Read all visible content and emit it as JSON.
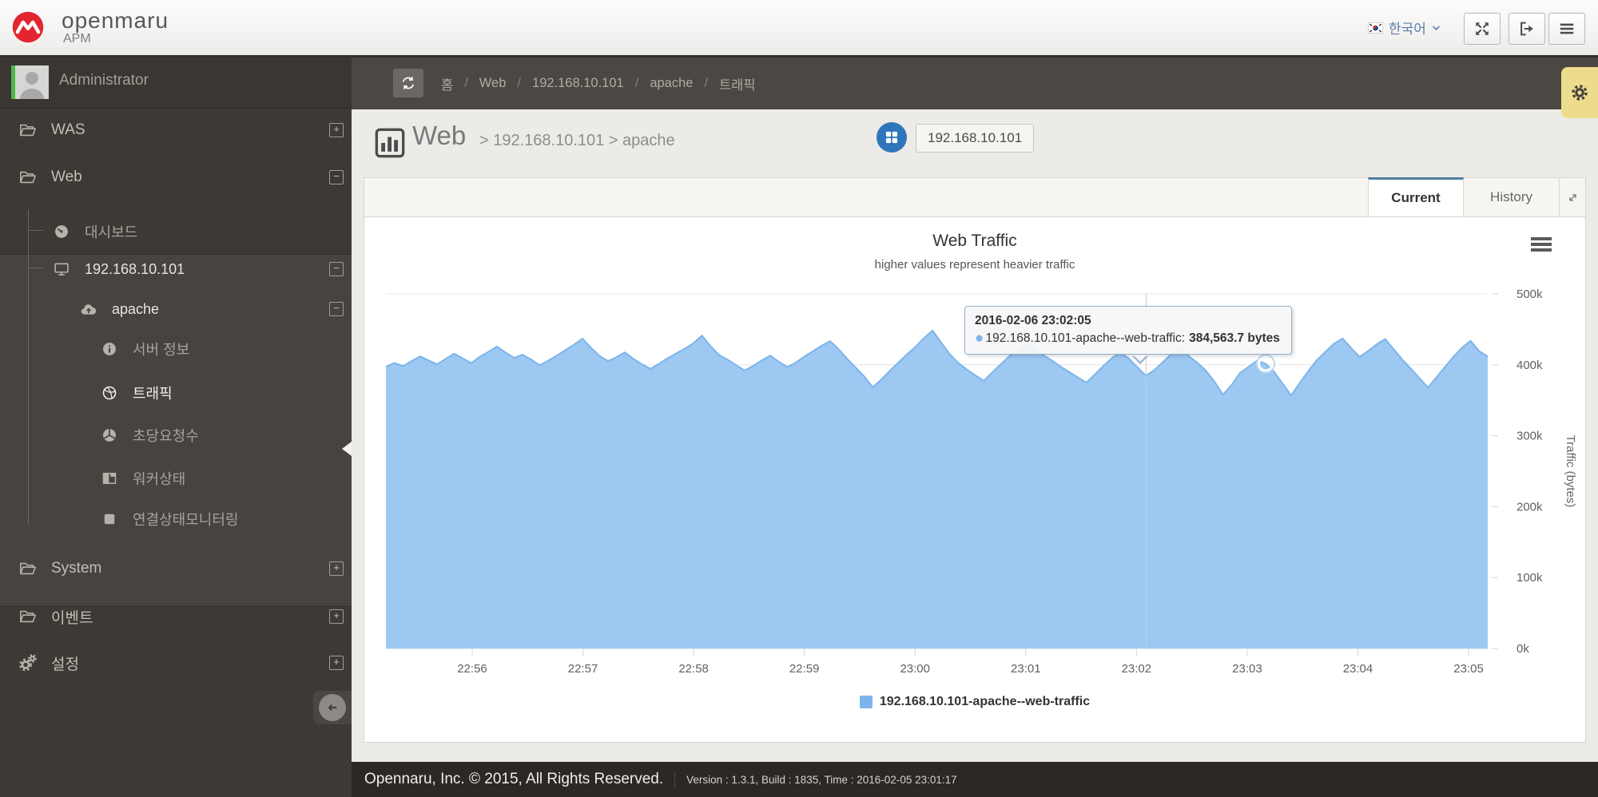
{
  "header": {
    "brand": {
      "name": "openmaru",
      "sub": "APM"
    },
    "language": {
      "label": "한국어"
    }
  },
  "sidebar": {
    "user": "Administrator",
    "was": {
      "label": "WAS",
      "expander": "+"
    },
    "web": {
      "label": "Web",
      "expander": "−"
    },
    "dashboard": {
      "label": "대시보드"
    },
    "host": {
      "label": "192.168.10.101",
      "expander": "−"
    },
    "apache": {
      "label": "apache",
      "expander": "−"
    },
    "server_info": {
      "label": "서버 정보"
    },
    "traffic": {
      "label": "트래픽"
    },
    "rps": {
      "label": "초당요청수"
    },
    "worker": {
      "label": "워커상태"
    },
    "conn": {
      "label": "연결상태모니터링"
    },
    "system": {
      "label": "System",
      "expander": "+"
    },
    "event": {
      "label": "이벤트",
      "expander": "+"
    },
    "settings": {
      "label": "설정",
      "expander": "+"
    }
  },
  "breadcrumb": {
    "sep": "/",
    "home": "홈",
    "level1": "Web",
    "level2": "192.168.10.101",
    "level3": "apache",
    "level4": "트래픽"
  },
  "page": {
    "title": "Web",
    "path": "> 192.168.10.101 > apache",
    "chip": "192.168.10.101"
  },
  "tabs": {
    "current_label": "Current",
    "history_label": "History"
  },
  "chart_data": {
    "type": "area",
    "title": "Web Traffic",
    "subtitle": "higher values represent heavier traffic",
    "xlabel": "",
    "ylabel": "Traffic (bytes)",
    "ylim_bytes": [
      0,
      500000
    ],
    "grid": true,
    "legend_position": "bottom",
    "ytick_labels": [
      "0k",
      "100k",
      "200k",
      "300k",
      "400k",
      "500k"
    ],
    "xtick_labels": [
      "22:56",
      "22:57",
      "22:58",
      "22:59",
      "23:00",
      "23:01",
      "23:02",
      "23:03",
      "23:04",
      "23:05"
    ],
    "series": [
      {
        "name": "192.168.10.101-apache--web-traffic",
        "color": "#7cb5ec",
        "unit": "bytes",
        "values_kbytes": [
          397.2,
          402.5,
          398.1,
          405.3,
          411.8,
          406.2,
          400.7,
          408.4,
          415.6,
          409.1,
          402.3,
          411.5,
          418.2,
          425.7,
          417.3,
          409.8,
          414.2,
          407.6,
          399.4,
          405.8,
          413.1,
          420.6,
          428.3,
          436.9,
          424.1,
          412.7,
          405.3,
          410.9,
          417.4,
          408.2,
          400.6,
          394.3,
          401.8,
          409.5,
          416.1,
          422.8,
          430.4,
          441.2,
          426.5,
          413.8,
          407.2,
          399.6,
          392.1,
          398.7,
          406.3,
          412.9,
          404.4,
          396.8,
          403.2,
          411.7,
          419.3,
          426.8,
          433.4,
          421.9,
          408.5,
          396.2,
          383.7,
          368.4,
          379.2,
          391.6,
          403.1,
          414.7,
          425.2,
          437.8,
          448.3,
          431.6,
          415.2,
          402.8,
          393.5,
          385.1,
          377.6,
          389.3,
          400.9,
          412.4,
          421.8,
          430.2,
          422.7,
          413.3,
          405.9,
          397.4,
          389.8,
          382.3,
          374.9,
          386.5,
          398.2,
          409.6,
          417.1,
          408.7,
          396.3,
          384.6,
          392.8,
          404.3,
          415.9,
          424.5,
          412.1,
          403.2,
          391.8,
          376.4,
          357.9,
          371.3,
          388.6,
          397.2,
          405.8,
          401.4,
          389.7,
          373.2,
          356.8,
          374.5,
          391.2,
          406.8,
          418.3,
          429.7,
          437.2,
          423.6,
          411.1,
          419.5,
          428.9,
          436.4,
          421.8,
          407.3,
          394.6,
          381.2,
          367.9,
          382.4,
          397.1,
          411.6,
          424.2,
          433.8,
          419.3,
          411.7
        ]
      }
    ],
    "hover": {
      "index": 89,
      "time": "2016-02-06 23:02:05",
      "value_text": "384,563.7 bytes",
      "marker_index": 103
    }
  },
  "tooltip": {
    "title": "2016-02-06 23:02:05",
    "series": "192.168.10.101-apache--web-traffic:",
    "value": "384,563.7 bytes"
  },
  "footer": {
    "copyright": "Opennaru, Inc. © 2015, All Rights Reserved.",
    "version": "Version : 1.3.1, Build : 1835, Time : 2016-02-05 23:01:17"
  },
  "colors": {
    "accent_series": "#7cb5ec",
    "brand_red": "#e32530",
    "tab_active_border": "#4e7e9f",
    "settings_tab_bg": "#eedc8d",
    "presence_green": "#4db848",
    "sidebar_bg": "#3d3935",
    "footer_bg": "#2b2825"
  },
  "icons": [
    "brand-logo",
    "korea-flag-icon",
    "caret-down-icon",
    "fullscreen-icon",
    "logout-icon",
    "menu-icon",
    "avatar",
    "folder-icon",
    "dashboard-icon",
    "monitor-icon",
    "cloud-icon",
    "info-icon",
    "globe-icon",
    "pie-icon",
    "columns-icon",
    "square-icon",
    "gears-icon",
    "refresh-icon",
    "settings-gear-icon",
    "chart-bars-icon",
    "grid-icon",
    "expand-icon",
    "chart-menu-icon",
    "collapse-arrow-icon"
  ]
}
